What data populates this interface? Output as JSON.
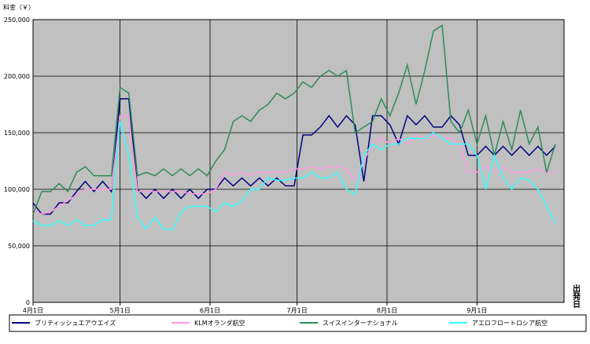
{
  "chart_data": {
    "type": "line",
    "y_axis_label": "料金（￥）",
    "x_axis_label": "出発日",
    "xlim": [
      0,
      183
    ],
    "xticks": [
      {
        "value": 0,
        "label": "4月1日"
      },
      {
        "value": 30,
        "label": "5月1日"
      },
      {
        "value": 61,
        "label": "6月1日"
      },
      {
        "value": 91,
        "label": "7月1日"
      },
      {
        "value": 122,
        "label": "8月1日"
      },
      {
        "value": 153,
        "label": "9月1日"
      }
    ],
    "ylim": [
      0,
      250000
    ],
    "yticks": [
      0,
      {
        "value": 50000,
        "label": "50,000"
      },
      {
        "value": 100000,
        "label": "100,000"
      },
      {
        "value": 150000,
        "label": "150,000"
      },
      {
        "value": 200000,
        "label": "200,000"
      },
      {
        "value": 250000,
        "label": "250,000"
      }
    ],
    "grid": true,
    "background": "#c0c0c0",
    "x": [
      0,
      3,
      6,
      9,
      12,
      15,
      18,
      21,
      24,
      27,
      30,
      33,
      36,
      39,
      42,
      45,
      48,
      51,
      54,
      57,
      60,
      63,
      66,
      69,
      72,
      75,
      78,
      81,
      84,
      87,
      90,
      93,
      96,
      99,
      102,
      105,
      108,
      111,
      114,
      117,
      120,
      123,
      126,
      129,
      132,
      135,
      138,
      141,
      144,
      147,
      150,
      153,
      156,
      159,
      162,
      165,
      168,
      171,
      174,
      177,
      180
    ],
    "series": [
      {
        "name": "ブリティッシュエアウエイズ",
        "color": "#000080",
        "values": [
          88000,
          78000,
          78000,
          88000,
          88000,
          98000,
          107000,
          98000,
          107000,
          98000,
          180000,
          180000,
          100000,
          92000,
          100000,
          92000,
          100000,
          92000,
          100000,
          92000,
          100000,
          100000,
          110000,
          103000,
          110000,
          103000,
          110000,
          103000,
          110000,
          103000,
          103000,
          148000,
          148000,
          155000,
          165000,
          155000,
          165000,
          157000,
          107000,
          165000,
          165000,
          157000,
          140000,
          165000,
          157000,
          165000,
          155000,
          155000,
          165000,
          157000,
          130000,
          130000,
          138000,
          130000,
          138000,
          130000,
          138000,
          130000,
          138000,
          130000,
          138000
        ]
      },
      {
        "name": "KLMオランダ航空",
        "color": "#ff99dd",
        "values": [
          82000,
          78000,
          80000,
          85000,
          90000,
          95000,
          100000,
          100000,
          100000,
          100000,
          165000,
          165000,
          98000,
          98000,
          98000,
          98000,
          98000,
          98000,
          96000,
          96000,
          96000,
          100000,
          115000,
          112000,
          115000,
          112000,
          115000,
          115000,
          115000,
          115000,
          118000,
          118000,
          120000,
          118000,
          120000,
          120000,
          118000,
          108000,
          125000,
          140000,
          145000,
          140000,
          145000,
          140000,
          148000,
          145000,
          148000,
          145000,
          145000,
          140000,
          115000,
          115000,
          120000,
          115000,
          120000,
          115000,
          115000,
          115000,
          118000,
          115000,
          115000
        ]
      },
      {
        "name": "スイスインターナショナル",
        "color": "#2e8b57",
        "values": [
          78000,
          98000,
          98000,
          105000,
          98000,
          115000,
          120000,
          112000,
          112000,
          112000,
          190000,
          185000,
          112000,
          115000,
          112000,
          118000,
          112000,
          118000,
          112000,
          118000,
          112000,
          125000,
          135000,
          160000,
          165000,
          160000,
          170000,
          175000,
          185000,
          180000,
          185000,
          195000,
          190000,
          200000,
          205000,
          200000,
          205000,
          150000,
          155000,
          160000,
          180000,
          165000,
          185000,
          210000,
          175000,
          205000,
          240000,
          245000,
          160000,
          150000,
          170000,
          140000,
          165000,
          130000,
          160000,
          135000,
          170000,
          140000,
          155000,
          115000,
          140000
        ]
      },
      {
        "name": "アエロフロートロシア航空",
        "color": "#33ffff",
        "values": [
          72000,
          68000,
          68000,
          72000,
          68000,
          73000,
          68000,
          68000,
          73000,
          73000,
          160000,
          130000,
          75000,
          65000,
          75000,
          65000,
          64000,
          80000,
          85000,
          85000,
          85000,
          80000,
          88000,
          85000,
          90000,
          100000,
          100000,
          110000,
          108000,
          108000,
          110000,
          110000,
          115000,
          110000,
          110000,
          115000,
          100000,
          95000,
          130000,
          140000,
          135000,
          140000,
          140000,
          145000,
          145000,
          145000,
          150000,
          145000,
          140000,
          140000,
          140000,
          130000,
          100000,
          130000,
          110000,
          100000,
          110000,
          108000,
          100000,
          85000,
          70000
        ]
      }
    ]
  }
}
